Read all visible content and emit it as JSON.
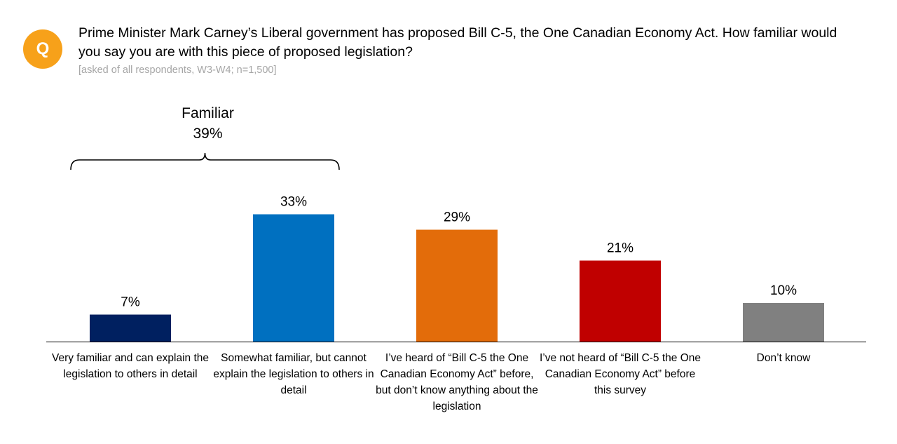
{
  "header": {
    "badge_letter": "Q",
    "badge_color": "#f7a11a",
    "question": "Prime Minister Mark Carney’s Liberal government has proposed Bill C-5, the One Canadian Economy Act. How familiar would you say you are with this piece of proposed legislation?",
    "base_note": "[asked of all respondents, W3-W4; n=1,500]"
  },
  "chart_data": {
    "type": "bar",
    "title": "",
    "xlabel": "",
    "ylabel": "",
    "ylim": [
      0,
      40
    ],
    "grid": false,
    "categories": [
      "Very familiar and can explain the legislation to others in detail",
      "Somewhat familiar, but cannot explain the legislation to others in detail",
      "I’ve heard of “Bill C-5 the One Canadian Economy Act” before, but don’t know anything about the legislation",
      "I’ve not heard of “Bill C-5 the One Canadian Economy Act” before this survey",
      "Don’t know"
    ],
    "values": [
      7,
      33,
      29,
      21,
      10
    ],
    "value_labels": [
      "7%",
      "33%",
      "29%",
      "21%",
      "10%"
    ],
    "colors": [
      "#002060",
      "#0070c0",
      "#e36c0a",
      "#c00000",
      "#808080"
    ],
    "bracket": {
      "label": "Familiar",
      "value_label": "39%",
      "spans_categories": [
        0,
        1
      ]
    }
  }
}
